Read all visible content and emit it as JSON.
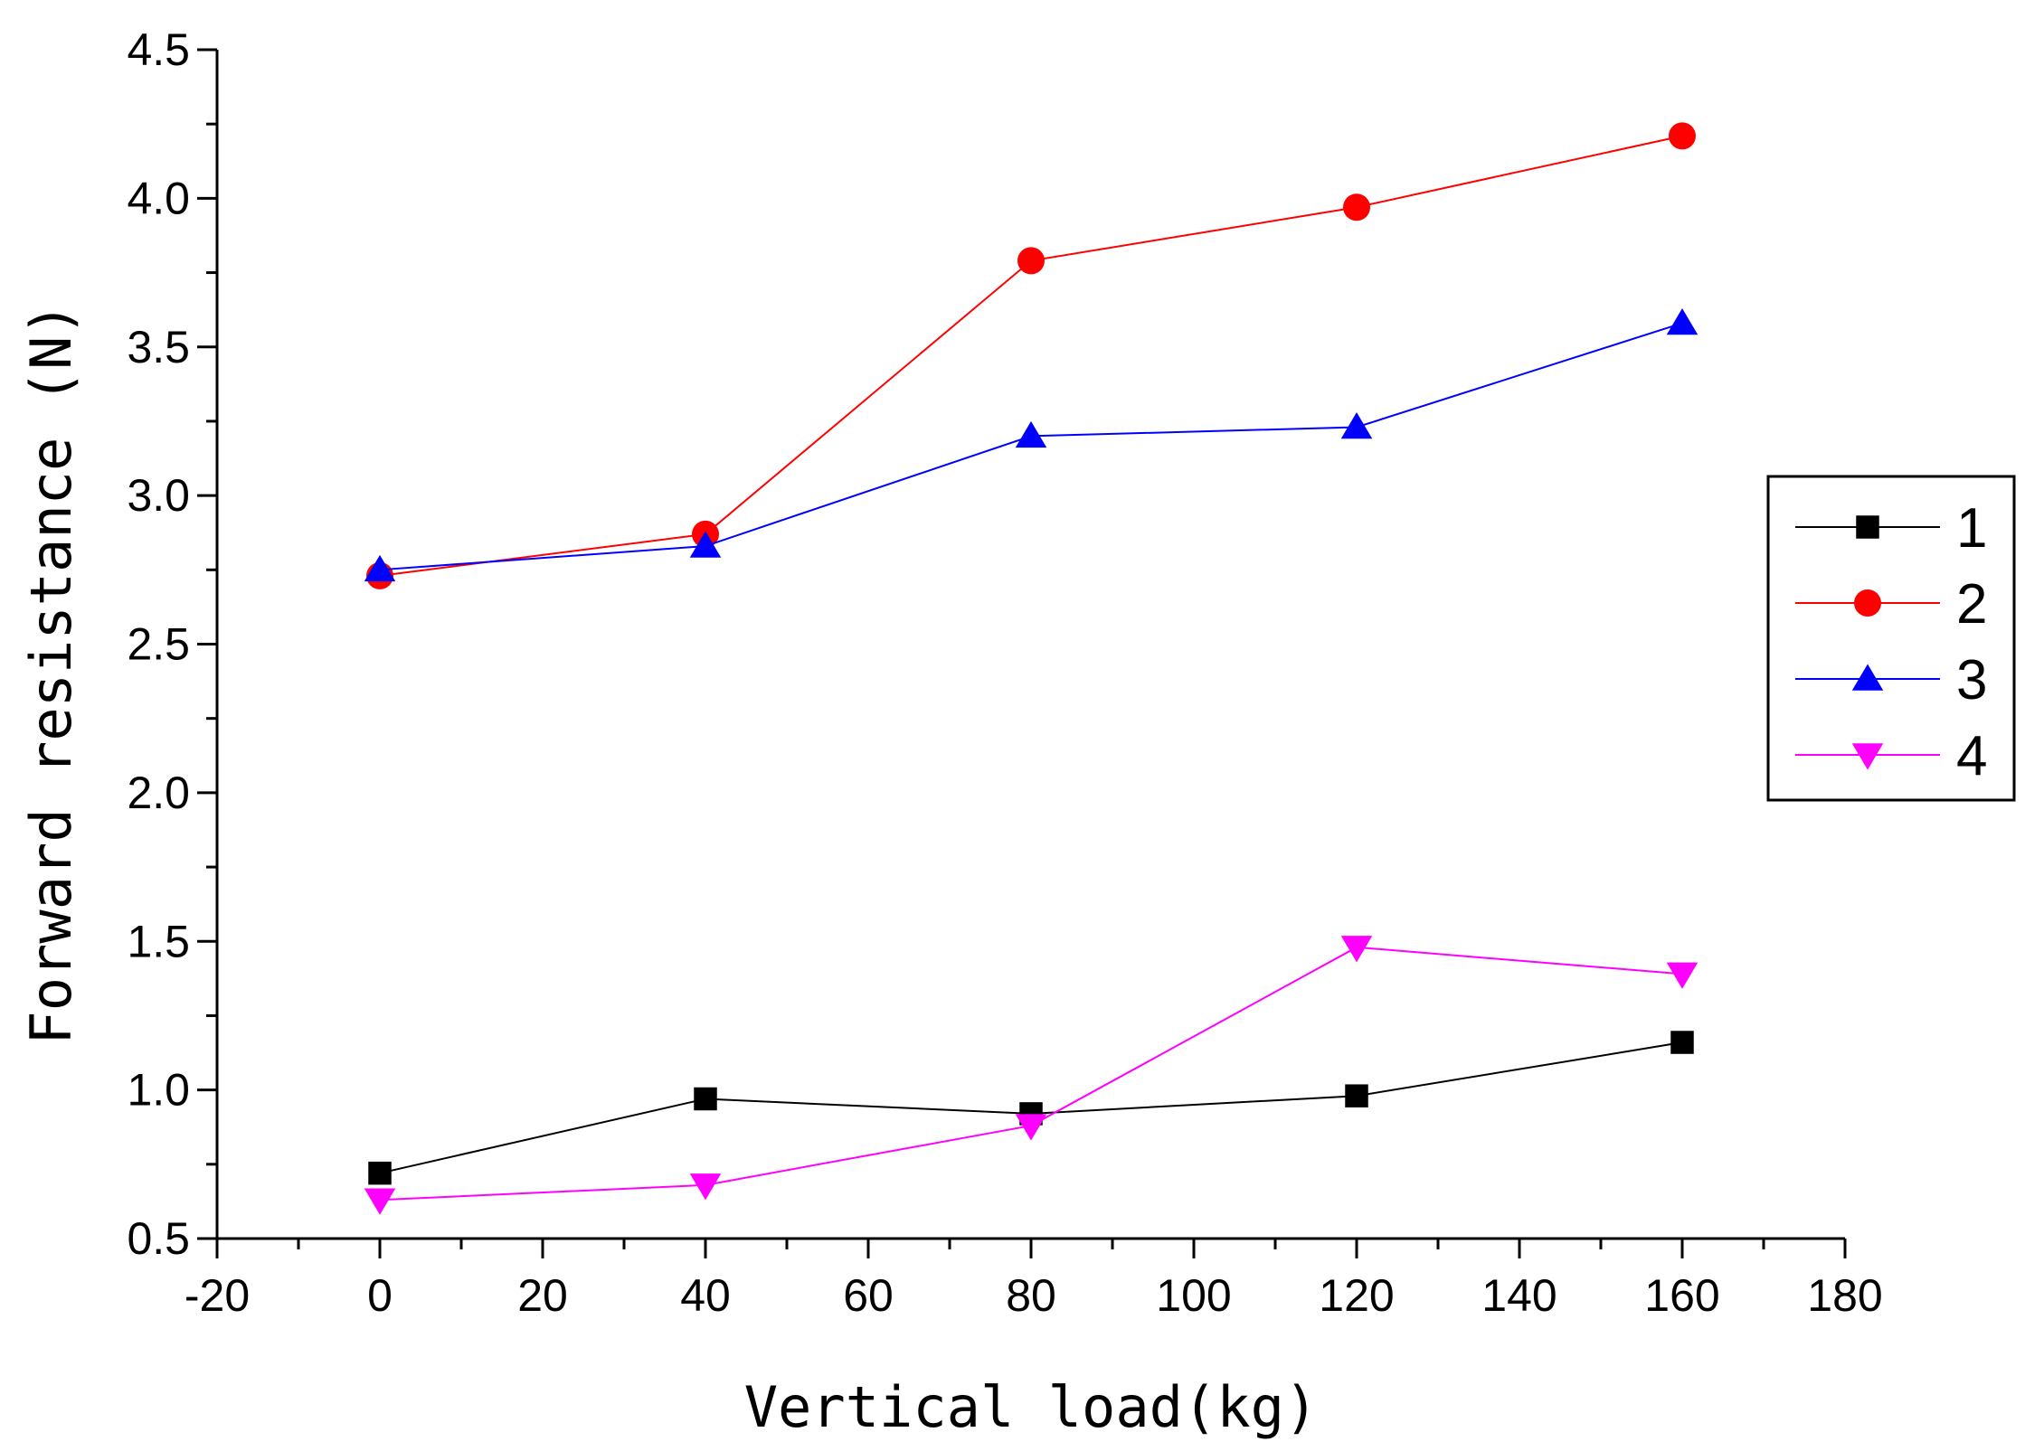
{
  "chart_data": {
    "type": "line",
    "title": "",
    "xlabel": "Vertical load(kg)",
    "ylabel": "Forward resistance (N)",
    "xlim": [
      -20,
      180
    ],
    "ylim": [
      0.5,
      4.5
    ],
    "x_ticks": [
      -20,
      0,
      20,
      40,
      60,
      80,
      100,
      120,
      140,
      160,
      180
    ],
    "x_tick_labels": [
      "-20",
      "0",
      "20",
      "40",
      "60",
      "80",
      "100",
      "120",
      "140",
      "160",
      "180"
    ],
    "y_ticks": [
      0.5,
      1.0,
      1.5,
      2.0,
      2.5,
      3.0,
      3.5,
      4.0,
      4.5
    ],
    "y_tick_labels": [
      "0.5",
      "1.0",
      "1.5",
      "2.0",
      "2.5",
      "3.0",
      "3.5",
      "4.0",
      "4.5"
    ],
    "grid": false,
    "legend_position": "right",
    "x": [
      0,
      40,
      80,
      120,
      160
    ],
    "series": [
      {
        "name": "1",
        "marker": "square",
        "color": "#000000",
        "values": [
          0.72,
          0.97,
          0.92,
          0.98,
          1.16
        ]
      },
      {
        "name": "2",
        "marker": "circle",
        "color": "#ff0000",
        "values": [
          2.73,
          2.87,
          3.79,
          3.97,
          4.21
        ]
      },
      {
        "name": "3",
        "marker": "triangle-up",
        "color": "#0000ff",
        "values": [
          2.75,
          2.83,
          3.2,
          3.23,
          3.58
        ]
      },
      {
        "name": "4",
        "marker": "triangle-down",
        "color": "#ff00ff",
        "values": [
          0.63,
          0.68,
          0.88,
          1.48,
          1.39
        ]
      }
    ]
  }
}
